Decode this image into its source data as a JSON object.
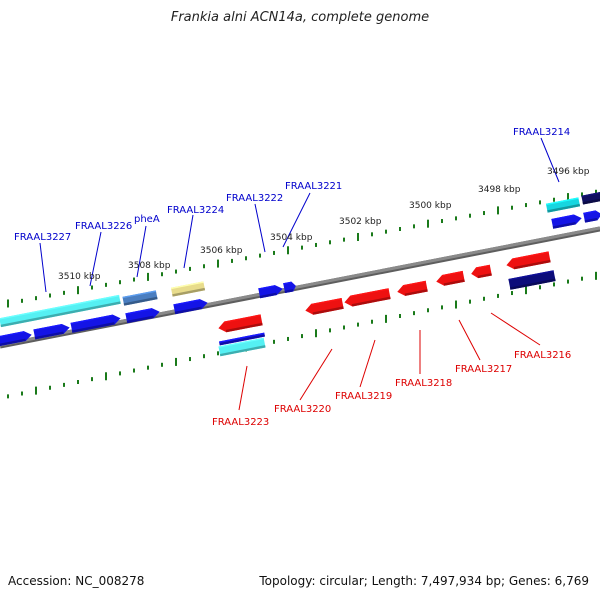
{
  "title": "Frankia alni ACN14a, complete genome",
  "footer": {
    "accession": "Accession: NC_008278",
    "summary": "Topology: circular; Length: 7,497,934 bp; Genes: 6,769"
  },
  "colors": {
    "forward_label": "#0000cc",
    "reverse_label": "#dd0000",
    "tick": "#1a7a1a",
    "backbone": "#8a8a8a"
  },
  "scale_labels": [
    "3496 kbp",
    "3498 kbp",
    "3500 kbp",
    "3502 kbp",
    "3504 kbp",
    "3506 kbp",
    "3508 kbp",
    "3510 kbp"
  ],
  "forward_genes": [
    {
      "label": "FRAAL3227"
    },
    {
      "label": "FRAAL3226"
    },
    {
      "label": "pheA"
    },
    {
      "label": "FRAAL3224"
    },
    {
      "label": "FRAAL3222"
    },
    {
      "label": "FRAAL3221"
    },
    {
      "label": "FRAAL3214"
    }
  ],
  "reverse_genes": [
    {
      "label": "FRAAL3223"
    },
    {
      "label": "FRAAL3220"
    },
    {
      "label": "FRAAL3219"
    },
    {
      "label": "FRAAL3218"
    },
    {
      "label": "FRAAL3217"
    },
    {
      "label": "FRAAL3216"
    }
  ]
}
